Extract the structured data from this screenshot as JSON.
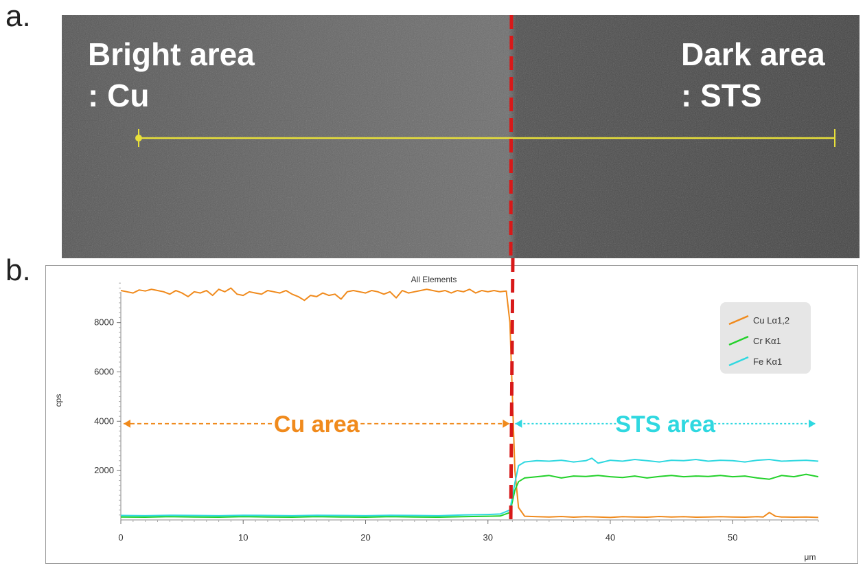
{
  "panel_a": {
    "letter": "a.",
    "left_label_line1": "Bright area",
    "left_label_line2": ": Cu",
    "right_label_line1": "Dark area",
    "right_label_line2": ": STS",
    "line_color": "#e8e03a"
  },
  "panel_b": {
    "letter": "b."
  },
  "chart_data": {
    "type": "line",
    "title": "All Elements",
    "xlabel": "μm",
    "ylabel": "cps",
    "xlim": [
      0,
      57
    ],
    "ylim": [
      0,
      9800
    ],
    "xticks": [
      0,
      10,
      20,
      30,
      40,
      50
    ],
    "yticks": [
      2000,
      4000,
      6000,
      8000
    ],
    "grid": false,
    "legend_position": "top-right",
    "series": [
      {
        "name": "Cu Lα1,2",
        "color": "#f08a1c",
        "x": [
          0,
          0.5,
          1,
          1.5,
          2,
          2.5,
          3,
          3.5,
          4,
          4.5,
          5,
          5.5,
          6,
          6.5,
          7,
          7.5,
          8,
          8.5,
          9,
          9.5,
          10,
          10.5,
          11,
          11.5,
          12,
          12.5,
          13,
          13.5,
          14,
          14.5,
          15,
          15.5,
          16,
          16.5,
          17,
          17.5,
          18,
          18.5,
          19,
          19.5,
          20,
          20.5,
          21,
          21.5,
          22,
          22.5,
          23,
          23.5,
          24,
          24.5,
          25,
          25.5,
          26,
          26.5,
          27,
          27.5,
          28,
          28.5,
          29,
          29.5,
          30,
          30.5,
          31,
          31.5,
          31.8,
          32,
          32.2,
          32.5,
          33,
          34,
          35,
          36,
          37,
          38,
          39,
          40,
          41,
          42,
          43,
          44,
          45,
          46,
          47,
          48,
          49,
          50,
          51,
          52,
          52.5,
          53,
          53.5,
          54,
          55,
          56,
          57
        ],
        "y": [
          9300,
          9250,
          9200,
          9320,
          9280,
          9350,
          9300,
          9250,
          9150,
          9300,
          9200,
          9050,
          9250,
          9200,
          9300,
          9100,
          9350,
          9250,
          9400,
          9150,
          9100,
          9250,
          9200,
          9150,
          9300,
          9250,
          9200,
          9300,
          9150,
          9050,
          8900,
          9100,
          9050,
          9200,
          9100,
          9150,
          8950,
          9250,
          9300,
          9250,
          9200,
          9300,
          9250,
          9150,
          9250,
          9000,
          9300,
          9200,
          9250,
          9300,
          9350,
          9300,
          9250,
          9300,
          9200,
          9300,
          9250,
          9350,
          9200,
          9300,
          9250,
          9300,
          9250,
          9280,
          8000,
          5000,
          2000,
          500,
          150,
          130,
          120,
          140,
          110,
          130,
          120,
          100,
          130,
          120,
          110,
          140,
          120,
          130,
          110,
          120,
          130,
          120,
          110,
          130,
          120,
          300,
          150,
          120,
          110,
          120,
          100
        ]
      },
      {
        "name": "Cr Kα1",
        "color": "#22d12a",
        "x": [
          0,
          2,
          4,
          6,
          8,
          10,
          12,
          14,
          16,
          18,
          20,
          22,
          24,
          26,
          28,
          30,
          31,
          31.8,
          32.2,
          32.5,
          33,
          34,
          35,
          36,
          37,
          38,
          39,
          40,
          41,
          42,
          43,
          44,
          45,
          46,
          47,
          48,
          49,
          50,
          51,
          52,
          53,
          54,
          55,
          56,
          57
        ],
        "y": [
          120,
          110,
          130,
          120,
          110,
          130,
          120,
          110,
          130,
          120,
          110,
          130,
          120,
          110,
          130,
          150,
          160,
          300,
          1200,
          1550,
          1700,
          1750,
          1800,
          1700,
          1780,
          1760,
          1800,
          1750,
          1720,
          1780,
          1700,
          1760,
          1800,
          1750,
          1780,
          1760,
          1800,
          1750,
          1780,
          1700,
          1650,
          1800,
          1750,
          1850,
          1750
        ]
      },
      {
        "name": "Fe Kα1",
        "color": "#2fd8e0",
        "x": [
          0,
          2,
          4,
          6,
          8,
          10,
          12,
          14,
          16,
          18,
          20,
          22,
          24,
          26,
          28,
          30,
          31,
          31.8,
          32.2,
          32.5,
          33,
          34,
          35,
          36,
          37,
          38,
          38.5,
          39,
          40,
          41,
          42,
          43,
          44,
          45,
          46,
          47,
          48,
          49,
          50,
          51,
          52,
          53,
          54,
          55,
          56,
          57
        ],
        "y": [
          180,
          170,
          190,
          180,
          170,
          190,
          180,
          170,
          190,
          180,
          170,
          190,
          180,
          170,
          200,
          220,
          240,
          400,
          1500,
          2200,
          2350,
          2400,
          2380,
          2420,
          2350,
          2400,
          2500,
          2300,
          2420,
          2380,
          2450,
          2400,
          2350,
          2420,
          2400,
          2450,
          2380,
          2420,
          2400,
          2350,
          2420,
          2450,
          2380,
          2400,
          2420,
          2380
        ]
      }
    ],
    "annotations": [
      {
        "text": "Cu area",
        "color": "#f08a1c",
        "x_from": 0,
        "x_to": 32,
        "y": 3900
      },
      {
        "text": "STS area",
        "color": "#2fd8e0",
        "x_from": 32,
        "x_to": 57,
        "y": 3900
      }
    ]
  }
}
